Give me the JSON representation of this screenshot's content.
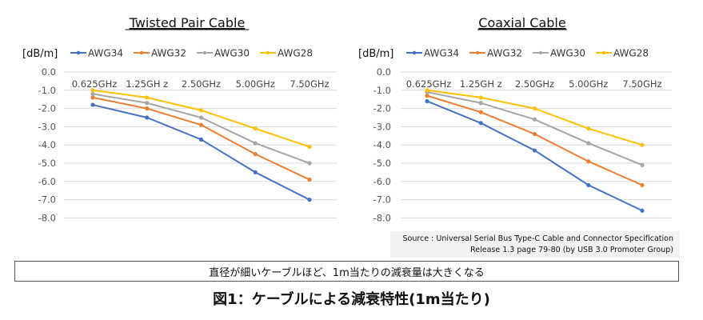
{
  "chart_data": [
    {
      "type": "line",
      "title": "Twisted Pair Cable",
      "ylabel": "[dB/m]",
      "categories": [
        "0.625GHz",
        "1.25GH z",
        "2.50GHz",
        "5.00GHz",
        "7.50GHz"
      ],
      "ylim": [
        -8.0,
        0.0
      ],
      "yticks": [
        "0.0",
        "-1.0",
        "-2.0",
        "-3.0",
        "-4.0",
        "-5.0",
        "-6.0",
        "-7.0",
        "-8.0"
      ],
      "grid": true,
      "legend": "top",
      "series": [
        {
          "name": "AWG34",
          "color": "#4472c4",
          "values": [
            -1.8,
            -2.5,
            -3.7,
            -5.5,
            -7.0
          ]
        },
        {
          "name": "AWG32",
          "color": "#ed7d31",
          "values": [
            -1.4,
            -2.0,
            -2.9,
            -4.5,
            -5.9
          ]
        },
        {
          "name": "AWG30",
          "color": "#a5a5a5",
          "values": [
            -1.2,
            -1.7,
            -2.5,
            -3.9,
            -5.0
          ]
        },
        {
          "name": "AWG28",
          "color": "#ffc000",
          "values": [
            -1.0,
            -1.4,
            -2.1,
            -3.1,
            -4.1
          ]
        }
      ]
    },
    {
      "type": "line",
      "title": "Coaxial Cable",
      "ylabel": "[dB/m]",
      "categories": [
        "0.625GHz",
        "1.25GH z",
        "2.50GHz",
        "5.00GHz",
        "7.50GHz"
      ],
      "ylim": [
        -8.0,
        0.0
      ],
      "yticks": [
        "0.0",
        "-1.0",
        "-2.0",
        "-3.0",
        "-4.0",
        "-5.0",
        "-6.0",
        "-7.0",
        "-8.0"
      ],
      "grid": true,
      "legend": "top",
      "series": [
        {
          "name": "AWG34",
          "color": "#4472c4",
          "values": [
            -1.6,
            -2.8,
            -4.3,
            -6.2,
            -7.6
          ]
        },
        {
          "name": "AWG32",
          "color": "#ed7d31",
          "values": [
            -1.3,
            -2.2,
            -3.4,
            -4.9,
            -6.2
          ]
        },
        {
          "name": "AWG30",
          "color": "#a5a5a5",
          "values": [
            -1.1,
            -1.7,
            -2.6,
            -3.9,
            -5.1
          ]
        },
        {
          "name": "AWG28",
          "color": "#ffc000",
          "values": [
            -1.0,
            -1.4,
            -2.0,
            -3.1,
            -4.0
          ]
        }
      ]
    }
  ],
  "source": {
    "line1": "Source : Universal Serial Bus Type-C Cable and Connector Specification",
    "line2": "Release 1.3 page 79-80 (by USB 3.0 Promoter Group)"
  },
  "note": "直径が細いケーブルほど、1m当たりの減衰量は大きくなる",
  "caption": "図1：ケーブルによる減衰特性(1m当たり)"
}
